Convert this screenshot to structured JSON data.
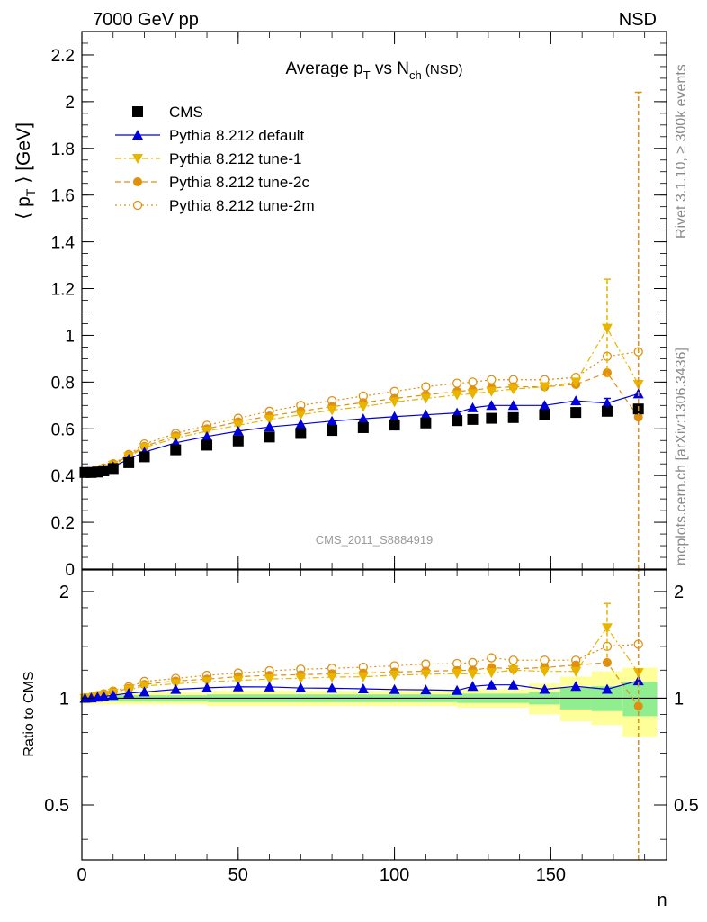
{
  "header": {
    "left": "7000 GeV pp",
    "right": "NSD"
  },
  "side_text": {
    "rivet": "Rivet 3.1.10, ≥ 300k events",
    "mcplots": "mcplots.cern.ch [arXiv:1306.3436]"
  },
  "chart_data": [
    {
      "type": "scatter",
      "title": "Average p_T vs N_ch (NSD)",
      "title_parts": {
        "a": "Average p",
        "a_sub": "T",
        "b": " vs N",
        "b_sub": "ch",
        "c": " (NSD)"
      },
      "ylabel": "⟨ p_T ⟩ [GeV]",
      "ylabel_parts": {
        "a": "⟨ p",
        "sub": "T",
        "b": " ⟩ [GeV]"
      },
      "xlabel": "n",
      "xlim": [
        0,
        187
      ],
      "ylim": [
        0,
        2.3
      ],
      "y_ticks": [
        "0",
        "0.2",
        "0.4",
        "0.6",
        "0.8",
        "1",
        "1.2",
        "1.4",
        "1.6",
        "1.8",
        "2",
        "2.2"
      ],
      "watermark": "CMS_2011_S8884919",
      "legend_position": "top-left",
      "legend": [
        {
          "label": "CMS",
          "color": "#000000",
          "marker": "square-filled",
          "line": "none"
        },
        {
          "label": "Pythia 8.212 default",
          "color": "#0000dd",
          "marker": "triangle-up",
          "line": "solid"
        },
        {
          "label": "Pythia 8.212 tune-1",
          "color": "#e8b400",
          "marker": "triangle-down",
          "line": "dashdot"
        },
        {
          "label": "Pythia 8.212 tune-2c",
          "color": "#e09010",
          "marker": "circle-filled",
          "line": "dashed"
        },
        {
          "label": "Pythia 8.212 tune-2m",
          "color": "#e09010",
          "marker": "circle-open",
          "line": "dotted"
        }
      ],
      "series": [
        {
          "name": "CMS",
          "color": "#000000",
          "x": [
            1,
            3,
            5,
            7,
            10,
            15,
            20,
            30,
            40,
            50,
            60,
            70,
            80,
            90,
            100,
            110,
            120,
            125,
            131,
            138,
            148,
            158,
            168,
            178
          ],
          "y": [
            0.413,
            0.413,
            0.415,
            0.42,
            0.43,
            0.455,
            0.48,
            0.51,
            0.53,
            0.548,
            0.565,
            0.58,
            0.593,
            0.605,
            0.616,
            0.625,
            0.635,
            0.64,
            0.645,
            0.648,
            0.66,
            0.67,
            0.675,
            0.685
          ]
        },
        {
          "name": "Pythia 8.212 default",
          "color": "#0000dd",
          "x": [
            1,
            3,
            5,
            7,
            10,
            15,
            20,
            30,
            40,
            50,
            60,
            70,
            80,
            90,
            100,
            110,
            120,
            125,
            131,
            138,
            148,
            158,
            168,
            178
          ],
          "y": [
            0.413,
            0.414,
            0.418,
            0.425,
            0.438,
            0.47,
            0.5,
            0.54,
            0.567,
            0.59,
            0.608,
            0.62,
            0.633,
            0.643,
            0.652,
            0.66,
            0.668,
            0.69,
            0.7,
            0.7,
            0.7,
            0.72,
            0.71,
            0.75
          ]
        },
        {
          "name": "Pythia 8.212 tune-1",
          "color": "#e8b400",
          "x": [
            1,
            3,
            5,
            7,
            10,
            15,
            20,
            30,
            40,
            50,
            60,
            70,
            80,
            90,
            100,
            110,
            120,
            125,
            131,
            138,
            148,
            158,
            168,
            178
          ],
          "y": [
            0.412,
            0.414,
            0.42,
            0.428,
            0.444,
            0.48,
            0.52,
            0.56,
            0.59,
            0.615,
            0.64,
            0.66,
            0.68,
            0.695,
            0.715,
            0.73,
            0.745,
            0.75,
            0.76,
            0.77,
            0.78,
            0.8,
            1.03,
            0.79
          ]
        },
        {
          "name": "Pythia 8.212 tune-2c",
          "color": "#e09010",
          "x": [
            1,
            3,
            5,
            7,
            10,
            15,
            20,
            30,
            40,
            50,
            60,
            70,
            80,
            90,
            100,
            110,
            120,
            125,
            131,
            138,
            148,
            158,
            168,
            178
          ],
          "y": [
            0.413,
            0.415,
            0.42,
            0.43,
            0.447,
            0.485,
            0.525,
            0.57,
            0.6,
            0.63,
            0.655,
            0.675,
            0.695,
            0.712,
            0.73,
            0.745,
            0.76,
            0.765,
            0.775,
            0.78,
            0.78,
            0.79,
            0.84,
            0.65
          ]
        },
        {
          "name": "Pythia 8.212 tune-2m",
          "color": "#e09010",
          "x": [
            1,
            3,
            5,
            7,
            10,
            15,
            20,
            30,
            40,
            50,
            60,
            70,
            80,
            90,
            100,
            110,
            120,
            125,
            131,
            138,
            148,
            158,
            168,
            178
          ],
          "y": [
            0.414,
            0.416,
            0.422,
            0.432,
            0.45,
            0.49,
            0.535,
            0.58,
            0.615,
            0.645,
            0.675,
            0.7,
            0.72,
            0.74,
            0.76,
            0.78,
            0.795,
            0.8,
            0.81,
            0.81,
            0.81,
            0.82,
            0.91,
            0.93
          ]
        }
      ],
      "error_bars": [
        {
          "series": "Pythia 8.212 tune-1",
          "x": 168,
          "low": 0.82,
          "high": 1.24
        },
        {
          "series": "Pythia 8.212 default",
          "x": 168,
          "low": 0.69,
          "high": 0.73
        },
        {
          "series": "Pythia 8.212 tune-2c",
          "x": 178,
          "low": 0.0,
          "high": 2.04
        }
      ]
    },
    {
      "type": "scatter",
      "ylabel": "Ratio to CMS",
      "xlabel": "n",
      "xlim": [
        0,
        187
      ],
      "ylim": [
        0.35,
        2.3
      ],
      "y_scale": "log",
      "x_ticks": [
        "0",
        "50",
        "100",
        "150"
      ],
      "y_ticks": [
        "0.5",
        "1",
        "2"
      ],
      "reference_line": 1,
      "band_colors": {
        "inner": "#90ee90",
        "outer": "#ffff99"
      },
      "bands": [
        {
          "x_from": 0,
          "x_to": 40,
          "inner": [
            0.98,
            1.02
          ],
          "outer": [
            0.96,
            1.04
          ]
        },
        {
          "x_from": 40,
          "x_to": 120,
          "inner": [
            0.975,
            1.025
          ],
          "outer": [
            0.95,
            1.05
          ]
        },
        {
          "x_from": 120,
          "x_to": 143,
          "inner": [
            0.97,
            1.03
          ],
          "outer": [
            0.94,
            1.06
          ]
        },
        {
          "x_from": 143,
          "x_to": 153,
          "inner": [
            0.96,
            1.04
          ],
          "outer": [
            0.9,
            1.1
          ]
        },
        {
          "x_from": 153,
          "x_to": 163,
          "inner": [
            0.93,
            1.07
          ],
          "outer": [
            0.86,
            1.15
          ]
        },
        {
          "x_from": 163,
          "x_to": 173,
          "inner": [
            0.92,
            1.08
          ],
          "outer": [
            0.84,
            1.19
          ]
        },
        {
          "x_from": 173,
          "x_to": 184,
          "inner": [
            0.89,
            1.11
          ],
          "outer": [
            0.78,
            1.22
          ]
        }
      ],
      "series": [
        {
          "name": "Pythia 8.212 default",
          "color": "#0000dd",
          "x": [
            1,
            3,
            5,
            7,
            10,
            15,
            20,
            30,
            40,
            50,
            60,
            70,
            80,
            90,
            100,
            110,
            120,
            125,
            131,
            138,
            148,
            158,
            168,
            178
          ],
          "y": [
            1.0,
            1.002,
            1.007,
            1.012,
            1.019,
            1.033,
            1.042,
            1.059,
            1.07,
            1.077,
            1.076,
            1.069,
            1.067,
            1.063,
            1.058,
            1.056,
            1.052,
            1.08,
            1.09,
            1.09,
            1.06,
            1.08,
            1.06,
            1.12
          ]
        },
        {
          "name": "Pythia 8.212 tune-1",
          "color": "#e8b400",
          "x": [
            1,
            3,
            5,
            7,
            10,
            15,
            20,
            30,
            40,
            50,
            60,
            70,
            80,
            90,
            100,
            110,
            120,
            125,
            131,
            138,
            148,
            158,
            168,
            178
          ],
          "y": [
            0.998,
            1.002,
            1.012,
            1.019,
            1.033,
            1.055,
            1.083,
            1.098,
            1.113,
            1.122,
            1.133,
            1.138,
            1.147,
            1.149,
            1.161,
            1.168,
            1.173,
            1.17,
            1.18,
            1.2,
            1.19,
            1.19,
            1.58,
            1.18
          ]
        },
        {
          "name": "Pythia 8.212 tune-2c",
          "color": "#e09010",
          "x": [
            1,
            3,
            5,
            7,
            10,
            15,
            20,
            30,
            40,
            50,
            60,
            70,
            80,
            90,
            100,
            110,
            120,
            125,
            131,
            138,
            148,
            158,
            168,
            178
          ],
          "y": [
            1.0,
            1.005,
            1.012,
            1.024,
            1.04,
            1.066,
            1.094,
            1.118,
            1.132,
            1.15,
            1.16,
            1.164,
            1.172,
            1.177,
            1.185,
            1.192,
            1.197,
            1.2,
            1.22,
            1.21,
            1.22,
            1.24,
            1.26,
            0.95
          ]
        },
        {
          "name": "Pythia 8.212 tune-2m",
          "color": "#e09010",
          "x": [
            1,
            3,
            5,
            7,
            10,
            15,
            20,
            30,
            40,
            50,
            60,
            70,
            80,
            90,
            100,
            110,
            120,
            125,
            131,
            138,
            148,
            158,
            168,
            178
          ],
          "y": [
            1.002,
            1.007,
            1.017,
            1.029,
            1.047,
            1.077,
            1.115,
            1.137,
            1.16,
            1.177,
            1.195,
            1.207,
            1.214,
            1.223,
            1.234,
            1.248,
            1.252,
            1.26,
            1.3,
            1.28,
            1.28,
            1.28,
            1.4,
            1.42
          ]
        }
      ],
      "error_bars": [
        {
          "series": "Pythia 8.212 tune-1",
          "x": 168,
          "low": 1.3,
          "high": 1.85
        },
        {
          "series": "Pythia 8.212 tune-2c",
          "x": 178,
          "low": 0.3,
          "high": 2.3
        }
      ]
    }
  ]
}
